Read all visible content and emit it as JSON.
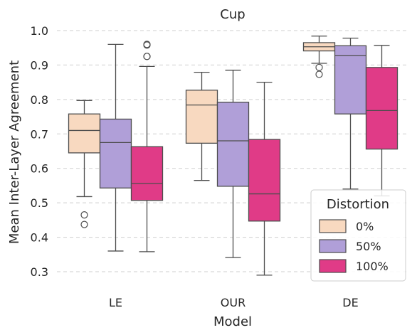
{
  "chart_data": {
    "type": "box",
    "title": "Cup",
    "xlabel": "Model",
    "ylabel": "Mean Inter-Layer Agreement",
    "ylim": [
      0.25,
      1.0
    ],
    "yticks": [
      "0.3",
      "0.4",
      "0.5",
      "0.6",
      "0.7",
      "0.8",
      "0.9",
      "1.0"
    ],
    "grid": "horizontal dashed",
    "categories": [
      "LE",
      "OUR",
      "DE"
    ],
    "legend": {
      "title": "Distortion",
      "position": "lower-right"
    },
    "series": [
      {
        "name": "0%",
        "color": "#f8d9c0",
        "boxes": [
          {
            "whislo": 0.518,
            "q1": 0.645,
            "med": 0.71,
            "q3": 0.758,
            "whishi": 0.797,
            "fliers": [
              0.465,
              0.437
            ]
          },
          {
            "whislo": 0.565,
            "q1": 0.673,
            "med": 0.784,
            "q3": 0.827,
            "whishi": 0.879,
            "fliers": []
          },
          {
            "whislo": 0.905,
            "q1": 0.941,
            "med": 0.953,
            "q3": 0.965,
            "whishi": 0.984,
            "fliers": [
              0.893,
              0.873
            ]
          }
        ]
      },
      {
        "name": "50%",
        "color": "#b09fd8",
        "boxes": [
          {
            "whislo": 0.36,
            "q1": 0.543,
            "med": 0.675,
            "q3": 0.743,
            "whishi": 0.96,
            "fliers": []
          },
          {
            "whislo": 0.341,
            "q1": 0.548,
            "med": 0.68,
            "q3": 0.792,
            "whishi": 0.885,
            "fliers": []
          },
          {
            "whislo": 0.54,
            "q1": 0.758,
            "med": 0.927,
            "q3": 0.956,
            "whishi": 0.978,
            "fliers": []
          }
        ]
      },
      {
        "name": "100%",
        "color": "#e03b87",
        "boxes": [
          {
            "whislo": 0.358,
            "q1": 0.507,
            "med": 0.556,
            "q3": 0.663,
            "whishi": 0.896,
            "fliers": [
              0.925,
              0.925,
              0.958,
              0.96
            ]
          },
          {
            "whislo": 0.29,
            "q1": 0.447,
            "med": 0.526,
            "q3": 0.684,
            "whishi": 0.85,
            "fliers": []
          },
          {
            "whislo": 0.52,
            "q1": 0.656,
            "med": 0.768,
            "q3": 0.893,
            "whishi": 0.957,
            "fliers": []
          }
        ]
      }
    ]
  }
}
